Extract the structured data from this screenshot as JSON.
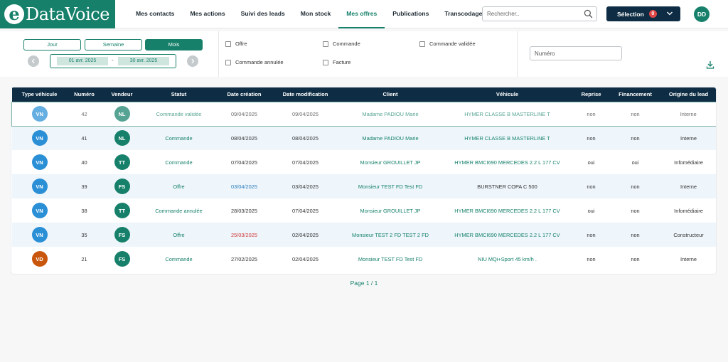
{
  "brand": {
    "logo_mark": "e",
    "logo_text": "DataVoice"
  },
  "nav": {
    "items": [
      {
        "label": "Mes contacts"
      },
      {
        "label": "Mes actions"
      },
      {
        "label": "Suivi des leads"
      },
      {
        "label": "Mon stock"
      },
      {
        "label": "Mes offres",
        "active": true
      },
      {
        "label": "Publications"
      },
      {
        "label": "Transcodage"
      }
    ]
  },
  "search": {
    "placeholder": "Rechercher..",
    "value": ""
  },
  "selection": {
    "label": "Sélection",
    "count": "0"
  },
  "user": {
    "initials": "DD"
  },
  "filters": {
    "periods": [
      {
        "label": "Jour"
      },
      {
        "label": "Semaine"
      },
      {
        "label": "Mois",
        "active": true
      }
    ],
    "date_from": "01 avr. 2025",
    "date_to": "30 avr. 2025",
    "date_sep": "-",
    "statuses": [
      {
        "label": "Offre",
        "checked": false
      },
      {
        "label": "Commande",
        "checked": false
      },
      {
        "label": "Commande validée",
        "checked": false
      },
      {
        "label": "Commande annulée",
        "checked": false
      },
      {
        "label": "Facture",
        "checked": false
      }
    ],
    "numero_placeholder": "Numéro"
  },
  "colors": {
    "brand_green": "#16806a",
    "navy": "#0e2d44",
    "vn_blue": "#2b8fd6",
    "vd_orange": "#c8560c",
    "badge_red": "#e04848"
  },
  "table": {
    "columns": [
      "Type véhicule",
      "Numéro",
      "Vendeur",
      "Statut",
      "Date création",
      "Date modification",
      "Client",
      "Véhicule",
      "Reprise",
      "Financement",
      "Origine du lead"
    ],
    "rows": [
      {
        "type": "VN",
        "numero": "42",
        "vendeur": "NL",
        "statut": "Commande validée",
        "date_creation": "09/04/2025",
        "date_modification": "09/04/2025",
        "client": "Madame PADIOU Marie",
        "vehicule": "HYMER CLASSE B MASTERLINE T",
        "reprise": "non",
        "financement": "non",
        "origine": "Interne"
      },
      {
        "type": "VN",
        "numero": "41",
        "vendeur": "NL",
        "statut": "Commande",
        "date_creation": "08/04/2025",
        "date_modification": "08/04/2025",
        "client": "Madame PADIOU Marie",
        "vehicule": "HYMER CLASSE B MASTERLINE T",
        "reprise": "non",
        "financement": "non",
        "origine": "Interne"
      },
      {
        "type": "VN",
        "numero": "40",
        "vendeur": "TT",
        "statut": "Commande",
        "date_creation": "07/04/2025",
        "date_modification": "07/04/2025",
        "client": "Monsieur GROUILLET JP",
        "vehicule": "HYMER BMCI690 MERCEDES 2.2 L 177 CV",
        "reprise": "oui",
        "financement": "oui",
        "origine": "Infomédiaire"
      },
      {
        "type": "VN",
        "numero": "39",
        "vendeur": "FS",
        "statut": "Offre",
        "date_creation": "03/04/2025",
        "date_modification": "03/04/2025",
        "client": "Monsieur TEST FD Test FD",
        "vehicule": "BURSTNER COPA C 500",
        "reprise": "non",
        "financement": "non",
        "origine": "Interne"
      },
      {
        "type": "VN",
        "numero": "38",
        "vendeur": "TT",
        "statut": "Commande annulée",
        "date_creation": "28/03/2025",
        "date_modification": "07/04/2025",
        "client": "Monsieur GROUILLET JP",
        "vehicule": "HYMER BMCI690 MERCEDES 2.2 L 177 CV",
        "reprise": "oui",
        "financement": "non",
        "origine": "Infomédiaire"
      },
      {
        "type": "VN",
        "numero": "35",
        "vendeur": "FS",
        "statut": "Offre",
        "date_creation": "25/03/2025",
        "date_modification": "02/04/2025",
        "client": "Monsieur TEST 2 FD TEST 2 FD",
        "vehicule": "HYMER BMCI690 MERCEDES 2.2 L 177 CV",
        "reprise": "non",
        "financement": "non",
        "origine": "Constructeur"
      },
      {
        "type": "VD",
        "numero": "21",
        "vendeur": "FS",
        "statut": "Commande",
        "date_creation": "27/02/2025",
        "date_modification": "02/04/2025",
        "client": "Monsieur TEST FD Test FD",
        "vehicule": "NIU MQi+Sport 45 km/h .",
        "reprise": "non",
        "financement": "non",
        "origine": "Interne"
      }
    ]
  },
  "pager": {
    "label": "Page 1 / 1"
  }
}
